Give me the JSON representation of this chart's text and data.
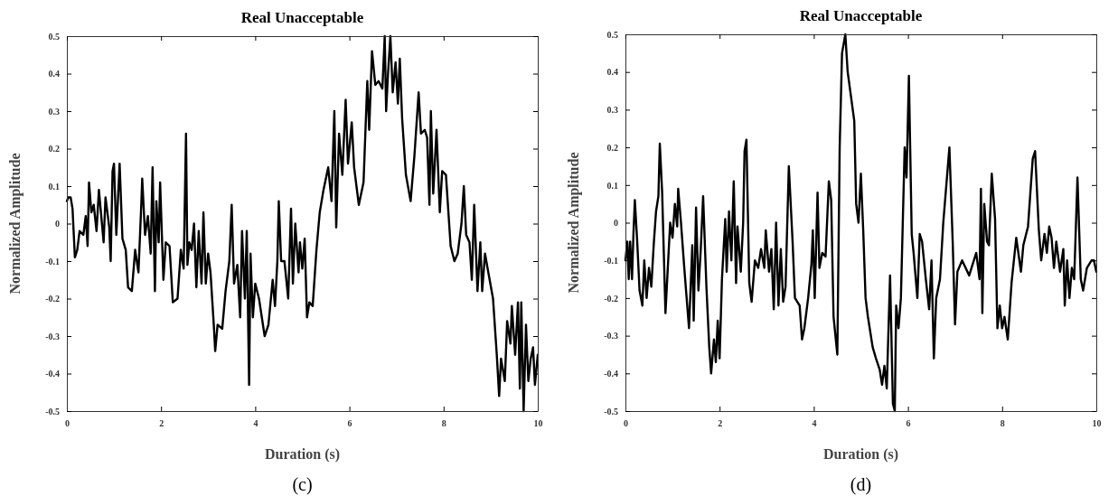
{
  "chart_data": [
    {
      "type": "line",
      "title": "Real Unacceptable",
      "xlabel": "Duration (s)",
      "ylabel": "Normalized Amplitude",
      "annotations": [
        "(c)"
      ],
      "xlim": [
        0,
        10
      ],
      "ylim": [
        -0.5,
        0.5
      ],
      "xticks": [
        0,
        2,
        4,
        6,
        8,
        10
      ],
      "yticks": [
        -0.5,
        -0.4,
        -0.3,
        -0.2,
        -0.1,
        0,
        0.1,
        0.2,
        0.3,
        0.4,
        0.5
      ],
      "series": [
        {
          "color": "#000000",
          "x": [
            0,
            0.03,
            0.08,
            0.12,
            0.17,
            0.22,
            0.27,
            0.35,
            0.4,
            0.44,
            0.47,
            0.52,
            0.57,
            0.63,
            0.68,
            0.73,
            0.78,
            0.82,
            0.9,
            0.93,
            0.97,
            1.0,
            1.05,
            1.12,
            1.18,
            1.25,
            1.3,
            1.38,
            1.45,
            1.52,
            1.58,
            1.6,
            1.66,
            1.72,
            1.78,
            1.82,
            1.87,
            1.9,
            1.95,
            1.98,
            2.05,
            2.1,
            2.18,
            2.25,
            2.35,
            2.42,
            2.48,
            2.53,
            2.56,
            2.6,
            2.65,
            2.7,
            2.75,
            2.8,
            2.86,
            2.9,
            2.95,
            3.0,
            3.05,
            3.12,
            3.15,
            3.2,
            3.3,
            3.37,
            3.45,
            3.5,
            3.55,
            3.62,
            3.68,
            3.72,
            3.78,
            3.82,
            3.87,
            3.9,
            3.95,
            4.0,
            4.08,
            4.2,
            4.28,
            4.37,
            4.42,
            4.47,
            4.5,
            4.55,
            4.62,
            4.7,
            4.76,
            4.8,
            4.85,
            4.92,
            4.95,
            5.0,
            5.05,
            5.1,
            5.15,
            5.22,
            5.3,
            5.37,
            5.45,
            5.55,
            5.62,
            5.68,
            5.72,
            5.78,
            5.85,
            5.92,
            5.97,
            6.05,
            6.1,
            6.2,
            6.3,
            6.38,
            6.42,
            6.48,
            6.55,
            6.62,
            6.7,
            6.75,
            6.78,
            6.82,
            6.87,
            6.92,
            6.98,
            7.03,
            7.07,
            7.12,
            7.2,
            7.3,
            7.38,
            7.47,
            7.52,
            7.6,
            7.65,
            7.7,
            7.73,
            7.78,
            7.85,
            7.92,
            7.97,
            8.05,
            8.15,
            8.23,
            8.3,
            8.38,
            8.43,
            8.48,
            8.55,
            8.6,
            8.65,
            8.72,
            8.78,
            8.82,
            8.88,
            8.95,
            9.05,
            9.13,
            9.18,
            9.22,
            9.3,
            9.35,
            9.42,
            9.45,
            9.52,
            9.58,
            9.62,
            9.65,
            9.7,
            9.75,
            9.8,
            9.85,
            9.9,
            9.94,
            10.0
          ],
          "values": [
            0.06,
            0.07,
            0.07,
            0.04,
            -0.09,
            -0.07,
            -0.02,
            -0.03,
            0.02,
            -0.06,
            0.11,
            0.03,
            0.05,
            -0.02,
            0.09,
            0.02,
            -0.05,
            0.07,
            -0.01,
            -0.1,
            0.14,
            0.16,
            -0.03,
            0.16,
            -0.04,
            -0.07,
            -0.17,
            -0.18,
            -0.07,
            -0.13,
            0.05,
            0.12,
            -0.03,
            0.02,
            -0.08,
            0.15,
            -0.18,
            0.06,
            -0.05,
            0.11,
            -0.15,
            -0.05,
            -0.06,
            -0.21,
            -0.2,
            -0.07,
            -0.12,
            0.24,
            -0.11,
            -0.05,
            -0.07,
            0.0,
            -0.17,
            -0.02,
            -0.16,
            0.03,
            -0.16,
            -0.08,
            -0.13,
            -0.27,
            -0.34,
            -0.27,
            -0.28,
            -0.18,
            -0.1,
            0.05,
            -0.16,
            -0.11,
            -0.25,
            -0.02,
            -0.2,
            -0.02,
            -0.43,
            -0.08,
            -0.25,
            -0.16,
            -0.2,
            -0.3,
            -0.27,
            -0.15,
            -0.22,
            -0.1,
            0.06,
            -0.1,
            -0.1,
            -0.2,
            0.04,
            -0.16,
            0.0,
            -0.13,
            -0.05,
            -0.12,
            -0.04,
            -0.25,
            -0.21,
            -0.22,
            -0.07,
            0.03,
            0.09,
            0.15,
            0.06,
            0.3,
            -0.01,
            0.24,
            0.13,
            0.33,
            0.16,
            0.27,
            0.15,
            0.05,
            0.11,
            0.38,
            0.25,
            0.46,
            0.37,
            0.38,
            0.36,
            0.5,
            0.3,
            0.4,
            0.5,
            0.35,
            0.43,
            0.32,
            0.44,
            0.28,
            0.13,
            0.06,
            0.18,
            0.35,
            0.24,
            0.25,
            0.23,
            0.05,
            0.3,
            0.08,
            0.25,
            0.03,
            0.14,
            0.13,
            -0.06,
            -0.1,
            -0.08,
            0.0,
            0.1,
            -0.03,
            -0.05,
            -0.15,
            0.05,
            -0.18,
            -0.05,
            -0.18,
            -0.08,
            -0.13,
            -0.2,
            -0.35,
            -0.46,
            -0.36,
            -0.42,
            -0.26,
            -0.32,
            -0.22,
            -0.35,
            -0.21,
            -0.44,
            -0.21,
            -0.5,
            -0.27,
            -0.42,
            -0.36,
            -0.33,
            -0.43,
            -0.35
          ]
        }
      ]
    },
    {
      "type": "line",
      "title": "Real Unacceptable",
      "xlabel": "Duration (s)",
      "ylabel": "Normalized Amplitude",
      "annotations": [
        "(d)"
      ],
      "xlim": [
        0,
        10
      ],
      "ylim": [
        -0.5,
        0.5
      ],
      "xticks": [
        0,
        2,
        4,
        6,
        8,
        10
      ],
      "yticks": [
        -0.5,
        -0.4,
        -0.3,
        -0.2,
        -0.1,
        0,
        0.1,
        0.2,
        0.3,
        0.4,
        0.5
      ],
      "series": [
        {
          "color": "#000000",
          "x": [
            0,
            0.04,
            0.07,
            0.1,
            0.14,
            0.17,
            0.2,
            0.25,
            0.3,
            0.36,
            0.4,
            0.45,
            0.5,
            0.55,
            0.6,
            0.65,
            0.7,
            0.73,
            0.78,
            0.85,
            0.9,
            0.95,
            1.0,
            1.05,
            1.1,
            1.12,
            1.18,
            1.25,
            1.3,
            1.35,
            1.42,
            1.45,
            1.5,
            1.55,
            1.6,
            1.65,
            1.72,
            1.78,
            1.82,
            1.88,
            1.92,
            1.96,
            2.0,
            2.05,
            2.12,
            2.15,
            2.2,
            2.25,
            2.3,
            2.35,
            2.38,
            2.45,
            2.5,
            2.53,
            2.57,
            2.63,
            2.68,
            2.75,
            2.82,
            2.88,
            2.95,
            2.98,
            3.05,
            3.1,
            3.15,
            3.2,
            3.25,
            3.3,
            3.35,
            3.4,
            3.47,
            3.55,
            3.6,
            3.7,
            3.75,
            3.8,
            3.88,
            3.95,
            3.98,
            4.02,
            4.08,
            4.12,
            4.18,
            4.25,
            4.32,
            4.37,
            4.42,
            4.5,
            4.55,
            4.6,
            4.67,
            4.72,
            4.86,
            4.9,
            4.95,
            5.0,
            5.05,
            5.1,
            5.15,
            5.25,
            5.32,
            5.4,
            5.45,
            5.5,
            5.55,
            5.62,
            5.68,
            5.72,
            5.75,
            5.8,
            5.85,
            5.93,
            5.97,
            6.02,
            6.08,
            6.12,
            6.2,
            6.25,
            6.3,
            6.38,
            6.45,
            6.5,
            6.55,
            6.6,
            6.68,
            6.75,
            6.88,
            6.95,
            7.0,
            7.05,
            7.15,
            7.3,
            7.45,
            7.52,
            7.55,
            7.58,
            7.62,
            7.68,
            7.72,
            7.78,
            7.85,
            7.9,
            7.95,
            8.0,
            8.05,
            8.12,
            8.2,
            8.3,
            8.4,
            8.45,
            8.55,
            8.65,
            8.7,
            8.78,
            8.83,
            8.9,
            8.95,
            9.0,
            9.05,
            9.1,
            9.15,
            9.23,
            9.3,
            9.33,
            9.38,
            9.43,
            9.48,
            9.53,
            9.6,
            9.67,
            9.72,
            9.8,
            9.9,
            9.95,
            10.0
          ],
          "values": [
            -0.1,
            -0.05,
            -0.15,
            -0.05,
            -0.15,
            -0.03,
            0.06,
            -0.05,
            -0.18,
            -0.22,
            -0.1,
            -0.2,
            -0.12,
            -0.17,
            -0.06,
            0.03,
            0.07,
            0.21,
            0.08,
            -0.24,
            -0.12,
            0.0,
            -0.04,
            0.05,
            -0.01,
            0.09,
            0.0,
            -0.12,
            -0.2,
            -0.28,
            -0.06,
            -0.26,
            0.04,
            -0.18,
            -0.07,
            0.07,
            -0.17,
            -0.33,
            -0.4,
            -0.31,
            -0.37,
            -0.26,
            -0.36,
            -0.15,
            0.01,
            -0.13,
            0.03,
            -0.1,
            0.11,
            -0.16,
            -0.01,
            -0.13,
            0.0,
            0.19,
            0.22,
            -0.16,
            -0.21,
            -0.1,
            -0.12,
            -0.07,
            -0.12,
            -0.02,
            -0.13,
            -0.07,
            -0.23,
            0.0,
            -0.22,
            -0.07,
            -0.21,
            -0.17,
            0.15,
            -0.05,
            -0.2,
            -0.22,
            -0.31,
            -0.28,
            -0.2,
            -0.11,
            -0.02,
            -0.2,
            0.08,
            -0.12,
            -0.08,
            -0.09,
            0.11,
            0.06,
            -0.25,
            -0.35,
            0.2,
            0.45,
            0.5,
            0.4,
            0.27,
            0.05,
            0.0,
            0.13,
            -0.02,
            -0.2,
            -0.25,
            -0.33,
            -0.36,
            -0.39,
            -0.43,
            -0.38,
            -0.44,
            -0.14,
            -0.48,
            -0.5,
            -0.22,
            -0.28,
            -0.2,
            0.2,
            0.12,
            0.39,
            -0.03,
            -0.08,
            -0.2,
            -0.03,
            -0.05,
            -0.15,
            -0.23,
            -0.1,
            -0.36,
            -0.2,
            -0.15,
            0.0,
            0.2,
            -0.05,
            -0.27,
            -0.13,
            -0.1,
            -0.14,
            -0.08,
            -0.15,
            0.09,
            -0.24,
            0.05,
            -0.05,
            -0.06,
            0.13,
            0.01,
            -0.28,
            -0.22,
            -0.28,
            -0.25,
            -0.31,
            -0.16,
            -0.04,
            -0.13,
            -0.06,
            -0.01,
            0.17,
            0.19,
            -0.02,
            -0.1,
            -0.03,
            -0.08,
            -0.01,
            -0.04,
            -0.12,
            -0.05,
            -0.13,
            -0.07,
            -0.22,
            -0.1,
            -0.2,
            -0.12,
            -0.15,
            0.12,
            -0.15,
            -0.18,
            -0.12,
            -0.1,
            -0.1,
            -0.13
          ]
        }
      ]
    }
  ]
}
